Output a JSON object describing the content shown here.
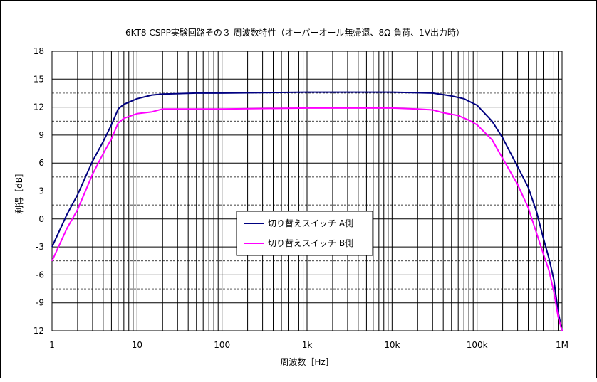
{
  "chart_data": {
    "type": "line",
    "title": "6KT8 CSPP実験回路その３ 周波数特性（オーバーオール無帰還、8Ω 負荷、1V出力時）",
    "xlabel": "周波数［Hz］",
    "ylabel": "利得［dB］",
    "x_scale": "log",
    "xlim": [
      1,
      1000000
    ],
    "ylim": [
      -12,
      18
    ],
    "x_ticks": [
      {
        "value": 1,
        "label": "1"
      },
      {
        "value": 10,
        "label": "10"
      },
      {
        "value": 100,
        "label": "100"
      },
      {
        "value": 1000,
        "label": "1k"
      },
      {
        "value": 10000,
        "label": "10k"
      },
      {
        "value": 100000,
        "label": "100k"
      },
      {
        "value": 1000000,
        "label": "1M"
      }
    ],
    "y_ticks": [
      18,
      15,
      12,
      9,
      6,
      3,
      0,
      -3,
      -6,
      -9,
      -12
    ],
    "grid": true,
    "legend_position": "center-left",
    "series": [
      {
        "name": "切り替えスイッチ A側",
        "color": "#000080",
        "points": [
          [
            1,
            -3.0
          ],
          [
            1.5,
            0.5
          ],
          [
            2,
            2.6
          ],
          [
            3,
            6.2
          ],
          [
            4,
            8.3
          ],
          [
            5,
            10.1
          ],
          [
            6,
            11.8
          ],
          [
            7,
            12.3
          ],
          [
            10,
            12.9
          ],
          [
            15,
            13.3
          ],
          [
            20,
            13.4
          ],
          [
            50,
            13.5
          ],
          [
            100,
            13.5
          ],
          [
            1000,
            13.6
          ],
          [
            10000,
            13.6
          ],
          [
            30000,
            13.5
          ],
          [
            50000,
            13.2
          ],
          [
            70000,
            12.9
          ],
          [
            100000,
            12.2
          ],
          [
            150000,
            10.5
          ],
          [
            200000,
            8.7
          ],
          [
            300000,
            5.6
          ],
          [
            400000,
            3.4
          ],
          [
            500000,
            0.8
          ],
          [
            600000,
            -2.0
          ],
          [
            700000,
            -4.2
          ],
          [
            800000,
            -6.5
          ],
          [
            900000,
            -10.0
          ],
          [
            1000000,
            -12.0
          ]
        ]
      },
      {
        "name": "切り替えスイッチ B側",
        "color": "#ff00ff",
        "points": [
          [
            1,
            -4.5
          ],
          [
            1.5,
            -1.0
          ],
          [
            2,
            1.0
          ],
          [
            3,
            4.8
          ],
          [
            4,
            7.0
          ],
          [
            5,
            8.6
          ],
          [
            6,
            10.3
          ],
          [
            7,
            10.8
          ],
          [
            10,
            11.3
          ],
          [
            15,
            11.5
          ],
          [
            20,
            11.8
          ],
          [
            100,
            11.8
          ],
          [
            1000,
            11.9
          ],
          [
            10000,
            11.9
          ],
          [
            20000,
            11.8
          ],
          [
            30000,
            11.7
          ],
          [
            40000,
            11.4
          ],
          [
            60000,
            11.1
          ],
          [
            80000,
            10.6
          ],
          [
            100000,
            10.1
          ],
          [
            150000,
            8.5
          ],
          [
            200000,
            6.5
          ],
          [
            300000,
            3.7
          ],
          [
            400000,
            1.2
          ],
          [
            500000,
            -1.5
          ],
          [
            600000,
            -3.7
          ],
          [
            700000,
            -5.5
          ],
          [
            800000,
            -7.8
          ],
          [
            900000,
            -10.5
          ],
          [
            1000000,
            -12.0
          ]
        ]
      }
    ]
  }
}
